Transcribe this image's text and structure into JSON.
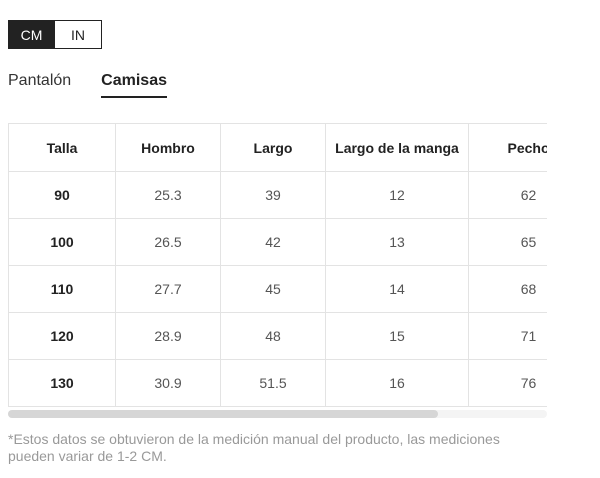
{
  "units": {
    "cm_label": "CM",
    "in_label": "IN",
    "selected": "CM"
  },
  "tabs": [
    {
      "label": "Pantalón",
      "active": false
    },
    {
      "label": "Camisas",
      "active": true
    }
  ],
  "table": {
    "headers": [
      "Talla",
      "Hombro",
      "Largo",
      "Largo de la manga",
      "Pecho"
    ],
    "rows": [
      [
        "90",
        "25.3",
        "39",
        "12",
        "62"
      ],
      [
        "100",
        "26.5",
        "42",
        "13",
        "65"
      ],
      [
        "110",
        "27.7",
        "45",
        "14",
        "68"
      ],
      [
        "120",
        "28.9",
        "48",
        "15",
        "71"
      ],
      [
        "130",
        "30.9",
        "51.5",
        "16",
        "76"
      ]
    ]
  },
  "footnote": "*Estos datos se obtuvieron de la medición manual del producto, las mediciones pueden variar de 1-2 CM.",
  "colors": {
    "accent": "#222222",
    "border": "#e3e3e3",
    "note_text": "#999999"
  }
}
